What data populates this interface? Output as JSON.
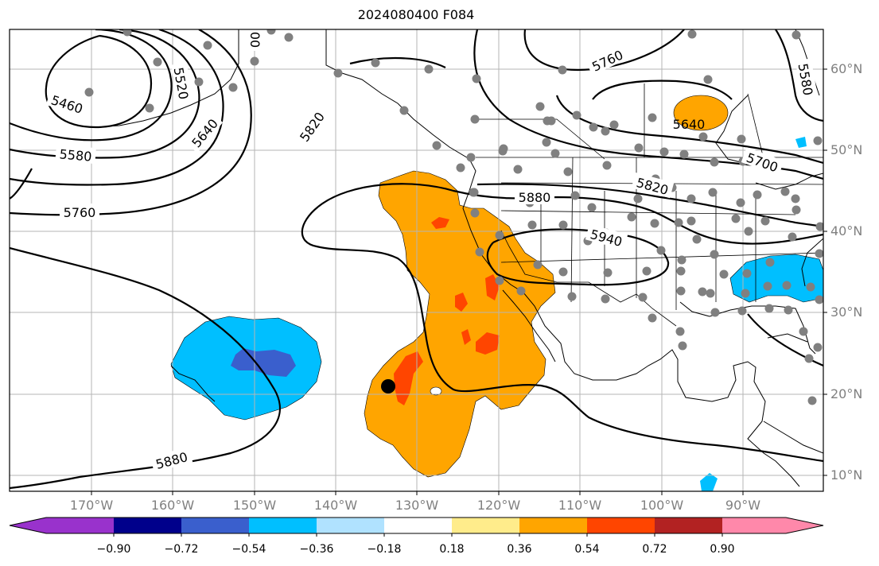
{
  "title": "2024080400 F084",
  "lat_labels": [
    "60°N",
    "50°N",
    "40°N",
    "30°N",
    "20°N",
    "10°N"
  ],
  "lon_labels": [
    "170°W",
    "160°W",
    "150°W",
    "140°W",
    "130°W",
    "120°W",
    "110°W",
    "100°W",
    "90°W"
  ],
  "contour_labels": [
    "5460",
    "5520",
    "5580",
    "5640",
    "5760",
    "5820",
    "5880",
    "5940",
    "5760",
    "5640",
    "5700",
    "5820",
    "5580",
    "00",
    "5880"
  ],
  "colorbar": {
    "tick_labels": [
      "−0.90",
      "−0.72",
      "−0.54",
      "−0.36",
      "−0.18",
      "0.18",
      "0.36",
      "0.54",
      "0.72",
      "0.90"
    ],
    "colors": [
      "#9932cc",
      "#00008b",
      "#3a5fcd",
      "#00bfff",
      "#b0e2ff",
      "#ffffff",
      "#ffec8b",
      "#ffa500",
      "#ff4500",
      "#b22222",
      "#ff88aa"
    ]
  },
  "colors": {
    "positive_fill": "#ffa500",
    "strong_positive_fill": "#ff4500",
    "negative_fill": "#00bfff",
    "strong_negative_fill": "#3a5fcd",
    "station_dot": "#808080",
    "marker": "#000000"
  }
}
